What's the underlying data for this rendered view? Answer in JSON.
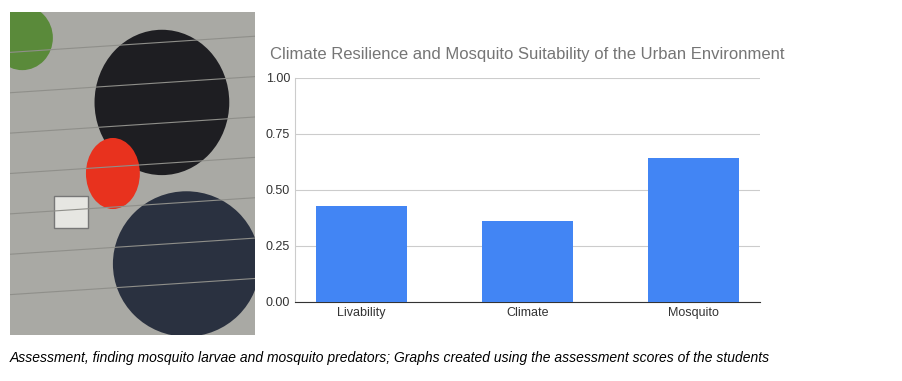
{
  "chart_data": {
    "type": "bar",
    "title": "Climate Resilience and Mosquito Suitability of the Urban Environment",
    "categories": [
      "Livability",
      "Climate",
      "Mosquito"
    ],
    "values": [
      0.43,
      0.36,
      0.645
    ],
    "color": "#4285f4",
    "ylim": [
      0,
      1
    ],
    "yticks": [
      {
        "value": 0,
        "label": "0.00"
      },
      {
        "value": 0.25,
        "label": "0.25"
      },
      {
        "value": 0.5,
        "label": "0.50"
      },
      {
        "value": 0.75,
        "label": "0.75"
      },
      {
        "value": 1,
        "label": "1.00"
      }
    ],
    "grid": true
  },
  "caption": "Assessment, finding mosquito larvae and mosquito predators; Graphs created using the assessment scores of the students"
}
